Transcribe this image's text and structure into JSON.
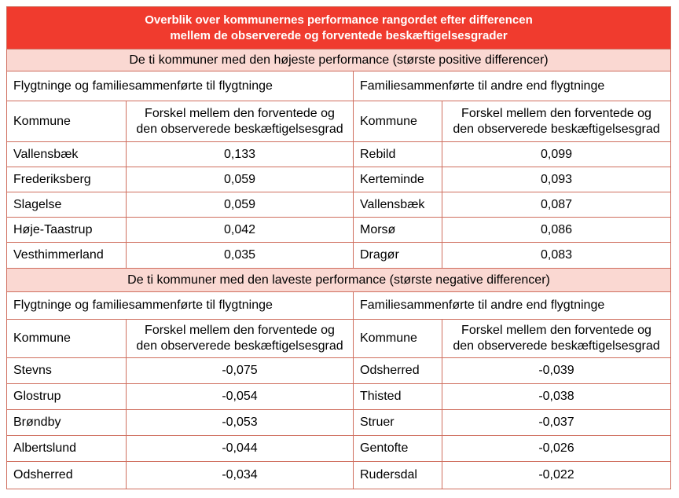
{
  "title": {
    "line1": "Overblik over kommunernes performance rangordet efter differencen",
    "line2": "mellem de observerede og forventede beskæftigelsesgrader"
  },
  "colors": {
    "header_red": "#f03b2e",
    "band_pink": "#fad8d2",
    "grid_line": "#cf6e5e",
    "title_text": "#ffffff",
    "body_text": "#000000"
  },
  "sections": [
    {
      "banner": "De ti kommuner med den højeste performance (største positive differencer)",
      "groups": [
        {
          "label": "Flygtninge og familiesammenførte til flygtninge",
          "col_kommune": "Kommune",
          "col_value_line1": "Forskel mellem den forventede og",
          "col_value_line2": "den observerede beskæftigelsesgrad",
          "rows": [
            {
              "kommune": "Vallensbæk",
              "value": "0,133"
            },
            {
              "kommune": "Frederiksberg",
              "value": "0,059"
            },
            {
              "kommune": "Slagelse",
              "value": "0,059"
            },
            {
              "kommune": "Høje-Taastrup",
              "value": "0,042"
            },
            {
              "kommune": "Vesthimmerland",
              "value": "0,035"
            }
          ]
        },
        {
          "label": "Familiesammenførte til andre end flygtninge",
          "col_kommune": "Kommune",
          "col_value_line1": "Forskel mellem den forventede og",
          "col_value_line2": "den observerede beskæftigelsesgrad",
          "rows": [
            {
              "kommune": "Rebild",
              "value": "0,099"
            },
            {
              "kommune": "Kerteminde",
              "value": "0,093"
            },
            {
              "kommune": "Vallensbæk",
              "value": "0,087"
            },
            {
              "kommune": "Morsø",
              "value": "0,086"
            },
            {
              "kommune": "Dragør",
              "value": "0,083"
            }
          ]
        }
      ]
    },
    {
      "banner": "De ti kommuner med den laveste performance (største negative differencer)",
      "groups": [
        {
          "label": "Flygtninge og familiesammenførte til flygtninge",
          "col_kommune": "Kommune",
          "col_value_line1": "Forskel mellem den forventede og",
          "col_value_line2": "den observerede beskæftigelsesgrad",
          "rows": [
            {
              "kommune": "Stevns",
              "value": "-0,075"
            },
            {
              "kommune": "Glostrup",
              "value": "-0,054"
            },
            {
              "kommune": "Brøndby",
              "value": "-0,053"
            },
            {
              "kommune": "Albertslund",
              "value": "-0,044"
            },
            {
              "kommune": "Odsherred",
              "value": "-0,034"
            }
          ]
        },
        {
          "label": "Familiesammenførte til andre end flygtninge",
          "col_kommune": "Kommune",
          "col_value_line1": "Forskel mellem den forventede og",
          "col_value_line2": "den observerede beskæftigelsesgrad",
          "rows": [
            {
              "kommune": "Odsherred",
              "value": "-0,039"
            },
            {
              "kommune": "Thisted",
              "value": "-0,038"
            },
            {
              "kommune": "Struer",
              "value": "-0,037"
            },
            {
              "kommune": "Gentofte",
              "value": "-0,026"
            },
            {
              "kommune": "Rudersdal",
              "value": "-0,022"
            }
          ]
        }
      ]
    }
  ]
}
